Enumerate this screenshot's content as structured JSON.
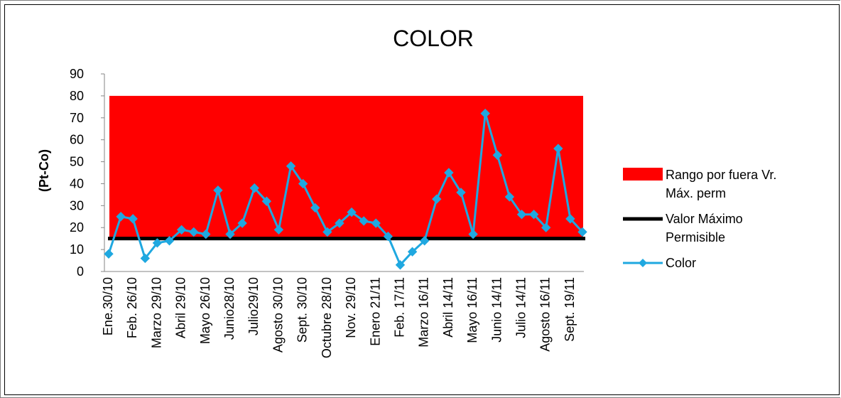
{
  "chart_data": {
    "type": "line",
    "title": "COLOR",
    "xlabel": "",
    "ylabel": "(Pt-Co)",
    "ylim": [
      0,
      90
    ],
    "yticks": [
      0,
      10,
      20,
      30,
      40,
      50,
      60,
      70,
      80,
      90
    ],
    "grid": false,
    "legend_position": "right",
    "tick_labels": [
      "Ene.30/10",
      "Feb. 26/10",
      "Marzo 29/10",
      "Abril 29/10",
      "Mayo 26/10",
      "Junio28/10",
      "Julio29/10",
      "Agosto 30/10",
      "Sept. 30/10",
      "Octubre 28/10",
      "Nov. 29/10",
      "Enero 21/11",
      "Feb. 17/11",
      "Marzo 16/11",
      "Abril 14/11",
      "Mayo 16/11",
      "Junio 14/11",
      "Julio 14/11",
      "Agosto 16/11",
      "Sept. 19/11"
    ],
    "series": [
      {
        "name": "Rango por fuera Vr. Máx. perm",
        "kind": "area",
        "from": 15,
        "to": 80,
        "color": "#ff0000"
      },
      {
        "name": "Valor Máximo Permisible",
        "kind": "line",
        "value": 15,
        "color": "#000000"
      },
      {
        "name": "Color",
        "kind": "line-markers",
        "color": "#1fa8e0",
        "values": [
          8,
          25,
          24,
          6,
          13,
          14,
          19,
          18,
          17,
          37,
          17,
          22,
          38,
          32,
          19,
          48,
          40,
          29,
          18,
          22,
          27,
          23,
          22,
          16,
          3,
          9,
          14,
          33,
          45,
          36,
          17,
          72,
          53,
          34,
          26,
          26,
          20,
          56,
          24,
          18
        ]
      }
    ]
  }
}
